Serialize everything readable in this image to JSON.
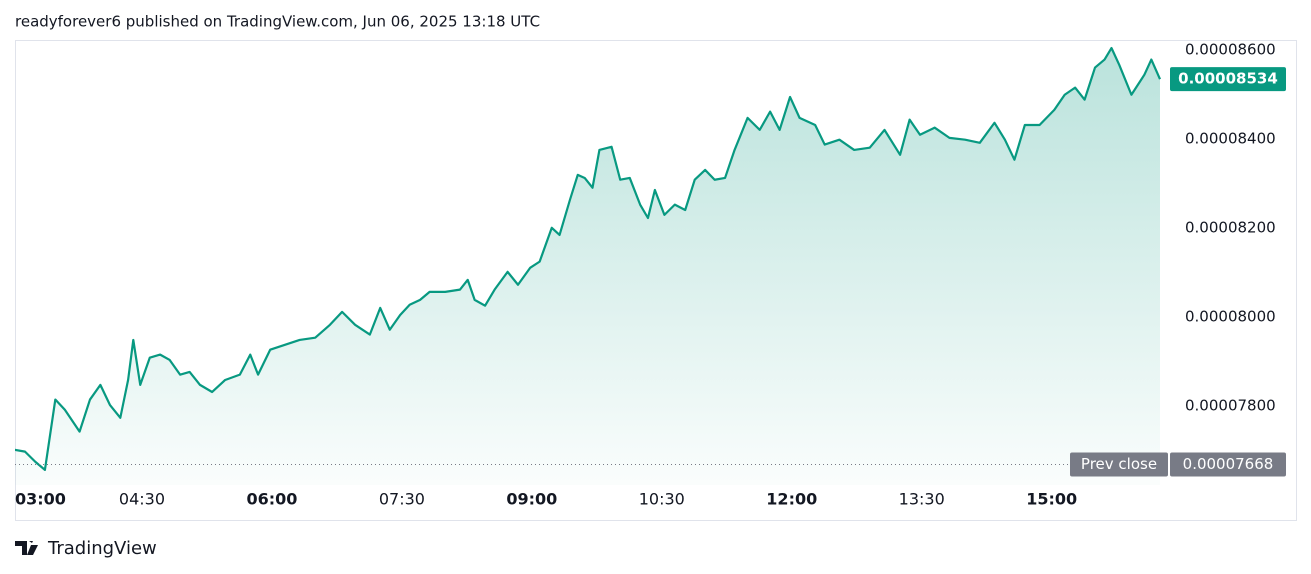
{
  "chart_data": {
    "type": "area",
    "title": "readyforever6 published on TradingView.com, Jun 06, 2025 13:18 UTC",
    "x": [
      3.03,
      3.15,
      3.27,
      3.38,
      3.5,
      3.61,
      3.78,
      3.9,
      4.02,
      4.13,
      4.25,
      4.34,
      4.4,
      4.48,
      4.59,
      4.71,
      4.82,
      4.94,
      5.05,
      5.17,
      5.31,
      5.46,
      5.63,
      5.75,
      5.84,
      5.98,
      6.15,
      6.32,
      6.5,
      6.67,
      6.81,
      6.96,
      7.13,
      7.25,
      7.36,
      7.48,
      7.59,
      7.71,
      7.82,
      8.0,
      8.17,
      8.26,
      8.34,
      8.46,
      8.57,
      8.72,
      8.84,
      8.98,
      9.09,
      9.23,
      9.32,
      9.44,
      9.53,
      9.61,
      9.7,
      9.78,
      9.92,
      10.02,
      10.13,
      10.25,
      10.34,
      10.42,
      10.53,
      10.65,
      10.77,
      10.88,
      11.0,
      11.11,
      11.23,
      11.34,
      11.49,
      11.63,
      11.75,
      11.86,
      11.98,
      12.09,
      12.27,
      12.38,
      12.55,
      12.72,
      12.9,
      13.07,
      13.25,
      13.36,
      13.48,
      13.65,
      13.82,
      14.0,
      14.17,
      14.34,
      14.46,
      14.57,
      14.69,
      14.86,
      15.03,
      15.15,
      15.27,
      15.38,
      15.5,
      15.61,
      15.69,
      15.78,
      15.92,
      16.07,
      16.15,
      16.25
    ],
    "series": [
      {
        "name": "Price",
        "color": "#089981",
        "values": [
          7.701e-05,
          7.697e-05,
          7.674e-05,
          7.656e-05,
          7.814e-05,
          7.791e-05,
          7.742e-05,
          7.814e-05,
          7.847e-05,
          7.802e-05,
          7.773e-05,
          7.858e-05,
          7.948e-05,
          7.847e-05,
          7.908e-05,
          7.915e-05,
          7.903e-05,
          7.87e-05,
          7.876e-05,
          7.847e-05,
          7.831e-05,
          7.858e-05,
          7.87e-05,
          7.915e-05,
          7.87e-05,
          7.926e-05,
          7.937e-05,
          7.948e-05,
          7.953e-05,
          7.982e-05,
          8.011e-05,
          7.982e-05,
          7.96e-05,
          8.02e-05,
          7.971e-05,
          8.004e-05,
          8.027e-05,
          8.038e-05,
          8.056e-05,
          8.056e-05,
          8.061e-05,
          8.083e-05,
          8.038e-05,
          8.025e-05,
          8.061e-05,
          8.101e-05,
          8.072e-05,
          8.11e-05,
          8.124e-05,
          8.2e-05,
          8.184e-05,
          8.263e-05,
          8.319e-05,
          8.312e-05,
          8.29e-05,
          8.375e-05,
          8.382e-05,
          8.308e-05,
          8.312e-05,
          8.252e-05,
          8.222e-05,
          8.285e-05,
          8.229e-05,
          8.252e-05,
          8.24e-05,
          8.308e-05,
          8.33e-05,
          8.308e-05,
          8.312e-05,
          8.375e-05,
          8.447e-05,
          8.42e-05,
          8.461e-05,
          8.42e-05,
          8.494e-05,
          8.447e-05,
          8.431e-05,
          8.387e-05,
          8.398e-05,
          8.375e-05,
          8.38e-05,
          8.42e-05,
          8.364e-05,
          8.443e-05,
          8.409e-05,
          8.425e-05,
          8.402e-05,
          8.398e-05,
          8.391e-05,
          8.436e-05,
          8.398e-05,
          8.353e-05,
          8.431e-05,
          8.431e-05,
          8.465e-05,
          8.499e-05,
          8.515e-05,
          8.488e-05,
          8.56e-05,
          8.578e-05,
          8.604e-05,
          8.566e-05,
          8.499e-05,
          8.544e-05,
          8.578e-05,
          8.534e-05
        ]
      }
    ],
    "xlim": [
      3,
      16.25
    ],
    "xticks": [
      {
        "value": 3,
        "label": "03:00"
      },
      {
        "value": 4.5,
        "label": "04:30"
      },
      {
        "value": 6,
        "label": "06:00"
      },
      {
        "value": 7.5,
        "label": "07:30"
      },
      {
        "value": 9,
        "label": "09:00"
      },
      {
        "value": 10.5,
        "label": "10:30"
      },
      {
        "value": 12,
        "label": "12:00"
      },
      {
        "value": 13.5,
        "label": "13:30"
      },
      {
        "value": 15,
        "label": "15:00"
      }
    ],
    "ylim": [
      7.622e-05,
      8.622e-05
    ],
    "yticks": [
      {
        "value": 7.8e-05,
        "label": "0.00007800"
      },
      {
        "value": 8e-05,
        "label": "0.00008000"
      },
      {
        "value": 8.2e-05,
        "label": "0.00008200"
      },
      {
        "value": 8.4e-05,
        "label": "0.00008400"
      },
      {
        "value": 8.6e-05,
        "label": "0.00008600"
      }
    ],
    "grid": false,
    "last_price": {
      "value": 8.534e-05,
      "label": "0.00008534",
      "color": "#089981"
    },
    "prev_close": {
      "name": "Prev close",
      "value": 7.668e-05,
      "label": "0.00007668",
      "color": "#787b86"
    }
  },
  "branding": "TradingView"
}
